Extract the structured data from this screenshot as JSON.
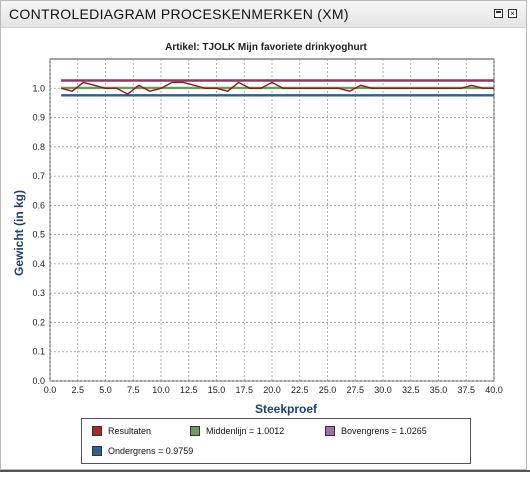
{
  "window": {
    "title": "CONTROLEDIAGRAM PROCESKENMERKEN (XM)",
    "restore_icon": "window-restore-icon",
    "close_icon": "window-close-icon"
  },
  "chart_data": {
    "type": "line",
    "title": "Artikel: TJOLK Mijn favoriete drinkyoghurt",
    "xlabel": "Steekproef",
    "ylabel": "Gewicht (in kg)",
    "xlim": [
      0,
      40
    ],
    "ylim": [
      0,
      1.1
    ],
    "x_ticks": [
      "0.0",
      "2.5",
      "5.0",
      "7.5",
      "10.0",
      "12.5",
      "15.0",
      "17.5",
      "20.0",
      "22.5",
      "25.0",
      "27.5",
      "30.0",
      "32.5",
      "35.0",
      "37.5",
      "40.0"
    ],
    "y_ticks": [
      "0.0",
      "0.1",
      "0.2",
      "0.3",
      "0.4",
      "0.5",
      "0.6",
      "0.7",
      "0.8",
      "0.9",
      "1.0"
    ],
    "grid": true,
    "legend_position": "bottom",
    "series": [
      {
        "name": "Resultaten",
        "color": "#8b1a1a",
        "x": [
          1,
          2,
          3,
          4,
          5,
          6,
          7,
          8,
          9,
          10,
          11,
          12,
          13,
          14,
          15,
          16,
          17,
          18,
          19,
          20,
          21,
          22,
          23,
          24,
          25,
          26,
          27,
          28,
          29,
          30,
          31,
          32,
          33,
          34,
          35,
          36,
          37,
          38,
          39,
          40
        ],
        "y": [
          1.0,
          0.99,
          1.02,
          1.01,
          1.0,
          1.0,
          0.98,
          1.01,
          0.99,
          1.0,
          1.02,
          1.02,
          1.01,
          1.0,
          1.0,
          0.99,
          1.02,
          1.0,
          1.0,
          1.02,
          1.0,
          1.0,
          1.0,
          1.0,
          1.0,
          1.0,
          0.99,
          1.01,
          1.0,
          1.0,
          1.0,
          1.0,
          1.0,
          1.0,
          1.0,
          1.0,
          1.0,
          1.01,
          1.0,
          1.0
        ]
      },
      {
        "name": "Middenlijn = 1.0012",
        "color": "#6e9b62",
        "x": [
          1,
          40
        ],
        "y": [
          1.0012,
          1.0012
        ]
      },
      {
        "name": "Bovengrens = 1.0265",
        "color": "#8b3a62",
        "x": [
          1,
          40
        ],
        "y": [
          1.0265,
          1.0265
        ]
      },
      {
        "name": "Ondergrens = 0.9759",
        "color": "#2f5f8a",
        "x": [
          1,
          40
        ],
        "y": [
          0.9759,
          0.9759
        ]
      }
    ]
  },
  "legend": {
    "resultaten": "Resultaten",
    "middenlijn": "Middenlijn = 1.0012",
    "bovengrens": "Bovengrens = 1.0265",
    "ondergrens": "Ondergrens = 0.9759",
    "colors": {
      "resultaten": "#a52a2a",
      "middenlijn": "#6e9b62",
      "bovengrens": "#a070a8",
      "ondergrens": "#2f5f8a"
    }
  }
}
